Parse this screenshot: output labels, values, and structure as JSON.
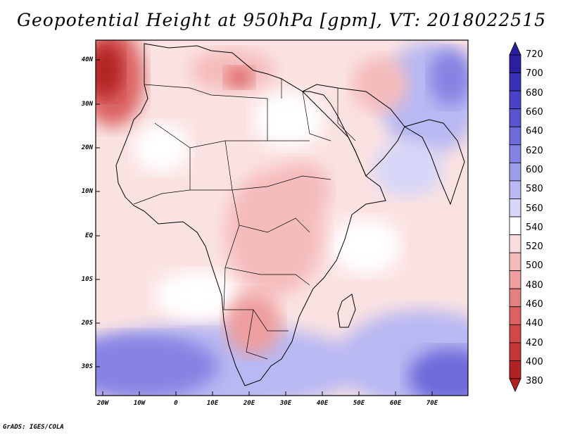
{
  "title": "Geopotential Height at 950hPa [gpm], VT: 2018022515",
  "credit": "GrADS: IGES/COLA",
  "map": {
    "lat_ticks": [
      "40N",
      "30N",
      "20N",
      "10N",
      "EQ",
      "10S",
      "20S",
      "30S"
    ],
    "lon_ticks": [
      "20W",
      "10W",
      "0",
      "10E",
      "20E",
      "30E",
      "40E",
      "50E",
      "60E",
      "70E"
    ],
    "extent": {
      "lon_min": -23,
      "lon_max": 79,
      "lat_min": -36,
      "lat_max": 45
    }
  },
  "colorbar": {
    "labels": [
      "720",
      "700",
      "680",
      "660",
      "640",
      "620",
      "600",
      "580",
      "560",
      "540",
      "520",
      "500",
      "480",
      "460",
      "440",
      "420",
      "400",
      "380"
    ],
    "colors": [
      "#2a1fa0",
      "#3a30b8",
      "#4a42c8",
      "#5a54d2",
      "#6e6ada",
      "#8682e2",
      "#9e9cea",
      "#b8b8f2",
      "#d6d6f8",
      "#ffffff",
      "#fbdcdc",
      "#f5bcbc",
      "#ee9e9e",
      "#e58080",
      "#dc6262",
      "#d24848",
      "#c53636",
      "#b22222"
    ]
  }
}
